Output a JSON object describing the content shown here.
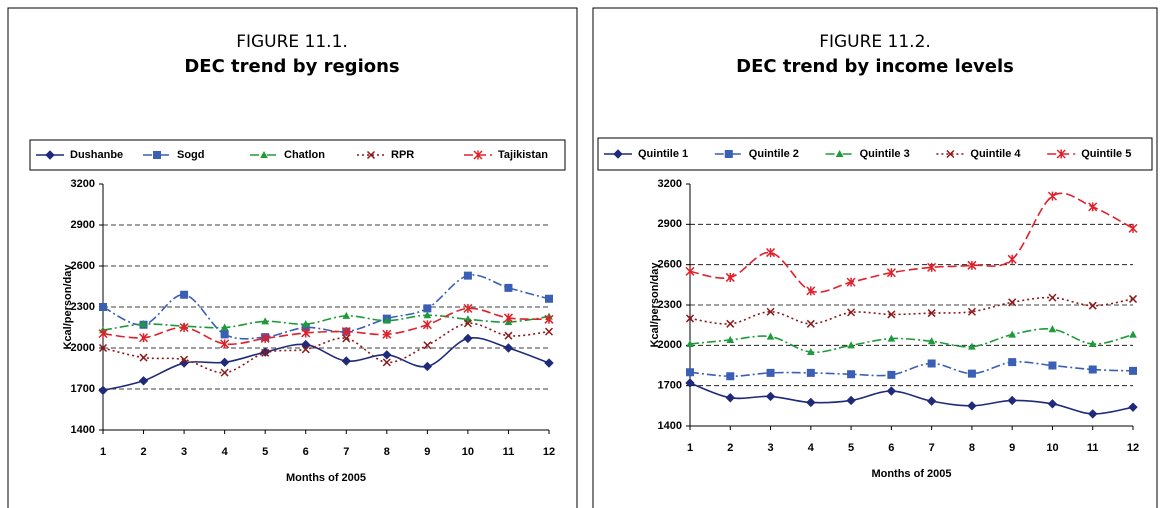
{
  "chart_data": [
    {
      "type": "line",
      "figure_label": "FIGURE 11.1.",
      "title": "DEC trend by regions",
      "x_label": "Months of 2005",
      "y_label": "Kcal/person/day",
      "x": [
        1,
        2,
        3,
        4,
        5,
        6,
        7,
        8,
        9,
        10,
        11,
        12
      ],
      "xlim": [
        1,
        12
      ],
      "xticks": [
        1,
        2,
        3,
        4,
        5,
        6,
        7,
        8,
        9,
        10,
        11,
        12
      ],
      "ylim": [
        1400,
        3200
      ],
      "yticks": [
        1400,
        1700,
        2000,
        2300,
        2600,
        2900,
        3200
      ],
      "grid": true,
      "legend": "top",
      "series": [
        {
          "name": "Dushanbe",
          "color": "#1f2a7a",
          "values": [
            1690,
            1760,
            1890,
            1895,
            1970,
            2025,
            1905,
            1950,
            1865,
            2070,
            2000,
            1890
          ]
        },
        {
          "name": "Sogd",
          "color": "#3a5fb5",
          "values": [
            2300,
            2170,
            2390,
            2100,
            2080,
            2150,
            2120,
            2215,
            2290,
            2530,
            2440,
            2360
          ]
        },
        {
          "name": "Chatlon",
          "color": "#1e9a3a",
          "values": [
            2130,
            2175,
            2160,
            2150,
            2195,
            2175,
            2235,
            2200,
            2240,
            2210,
            2190,
            2230
          ]
        },
        {
          "name": "RPR",
          "color": "#8b1a1a",
          "values": [
            2000,
            1930,
            1915,
            1820,
            1965,
            1990,
            2070,
            1895,
            2020,
            2180,
            2090,
            2120
          ]
        },
        {
          "name": "Tajikistan",
          "color": "#e0202a",
          "values": [
            2105,
            2075,
            2150,
            2030,
            2070,
            2110,
            2120,
            2100,
            2170,
            2290,
            2220,
            2210
          ]
        }
      ]
    },
    {
      "type": "line",
      "figure_label": "FIGURE 11.2.",
      "title": "DEC trend by income levels",
      "x_label": "Months of 2005",
      "y_label": "Kcal/person/day",
      "x": [
        1,
        2,
        3,
        4,
        5,
        6,
        7,
        8,
        9,
        10,
        11,
        12
      ],
      "xlim": [
        1,
        12
      ],
      "xticks": [
        1,
        2,
        3,
        4,
        5,
        6,
        7,
        8,
        9,
        10,
        11,
        12
      ],
      "ylim": [
        1400,
        3200
      ],
      "yticks": [
        1400,
        1700,
        2000,
        2300,
        2600,
        2900,
        3200
      ],
      "grid": true,
      "legend": "top",
      "series": [
        {
          "name": "Quintile 1",
          "color": "#1f2a7a",
          "values": [
            1720,
            1610,
            1620,
            1575,
            1590,
            1660,
            1585,
            1550,
            1590,
            1565,
            1490,
            1540
          ]
        },
        {
          "name": "Quintile 2",
          "color": "#3a5fb5",
          "values": [
            1800,
            1770,
            1795,
            1795,
            1785,
            1780,
            1865,
            1790,
            1875,
            1850,
            1820,
            1810
          ]
        },
        {
          "name": "Quintile 3",
          "color": "#1e9a3a",
          "values": [
            2010,
            2040,
            2065,
            1950,
            2000,
            2050,
            2030,
            1990,
            2080,
            2120,
            2010,
            2080
          ]
        },
        {
          "name": "Quintile 4",
          "color": "#8b1a1a",
          "values": [
            2200,
            2160,
            2250,
            2160,
            2245,
            2230,
            2240,
            2250,
            2320,
            2355,
            2295,
            2345
          ]
        },
        {
          "name": "Quintile 5",
          "color": "#e0202a",
          "values": [
            2550,
            2505,
            2690,
            2405,
            2470,
            2540,
            2580,
            2595,
            2640,
            3110,
            3030,
            2870
          ]
        }
      ]
    }
  ]
}
